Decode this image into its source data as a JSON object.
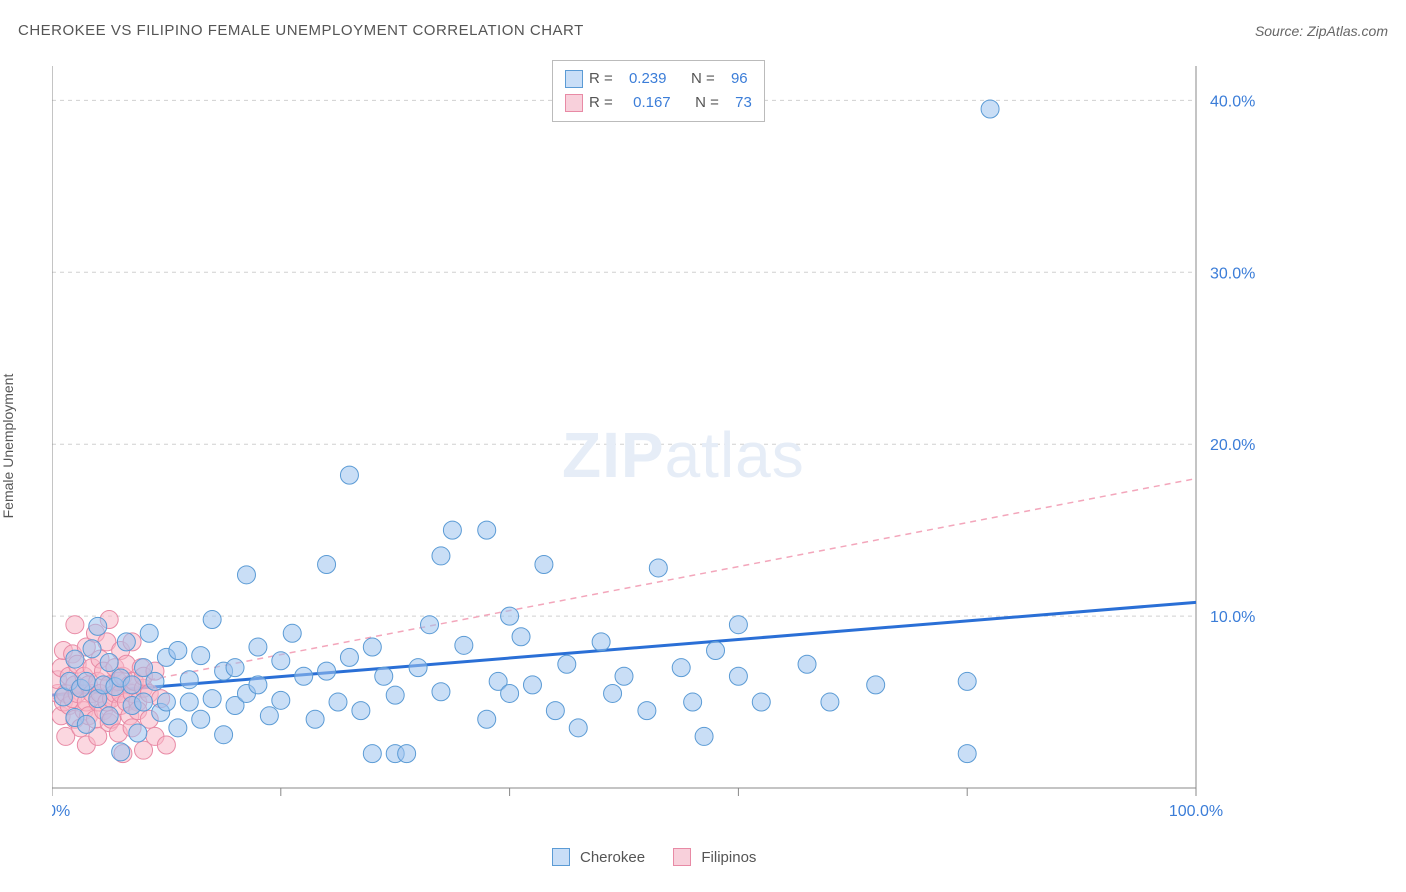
{
  "title": "CHEROKEE VS FILIPINO FEMALE UNEMPLOYMENT CORRELATION CHART",
  "source_prefix": "Source: ",
  "source_name": "ZipAtlas.com",
  "ylabel": "Female Unemployment",
  "watermark_bold": "ZIP",
  "watermark_rest": "atlas",
  "chart": {
    "type": "scatter",
    "xlim": [
      0,
      100
    ],
    "ylim": [
      0,
      42
    ],
    "x_ticks": [
      0,
      20,
      40,
      60,
      80,
      100
    ],
    "x_tick_labels_shown": {
      "0": "0.0%",
      "100": "100.0%"
    },
    "y_ticks": [
      10,
      20,
      30,
      40
    ],
    "y_tick_labels": [
      "10.0%",
      "20.0%",
      "30.0%",
      "40.0%"
    ],
    "background_color": "#ffffff",
    "grid_color": "#d0d0d0",
    "marker_radius": 9,
    "series": [
      {
        "key": "cherokee",
        "label": "Cherokee",
        "fill": "#9cc3ef",
        "stroke": "#5b9bd5",
        "trend_color": "#2a6fd6",
        "trend_dash": "none",
        "R": "0.239",
        "N": "96",
        "regression": {
          "x0": 0,
          "y0": 5.4,
          "x1": 100,
          "y1": 10.8
        },
        "points": [
          [
            1,
            5.3
          ],
          [
            1.5,
            6.2
          ],
          [
            2,
            4.1
          ],
          [
            2,
            7.5
          ],
          [
            2.5,
            5.8
          ],
          [
            3,
            6.2
          ],
          [
            3,
            3.7
          ],
          [
            3.5,
            8.1
          ],
          [
            4,
            5.2
          ],
          [
            4,
            9.4
          ],
          [
            4.5,
            6.0
          ],
          [
            5,
            4.2
          ],
          [
            5,
            7.3
          ],
          [
            5.5,
            5.9
          ],
          [
            6,
            2.1
          ],
          [
            6,
            6.4
          ],
          [
            6.5,
            8.5
          ],
          [
            7,
            4.8
          ],
          [
            7,
            6.0
          ],
          [
            7.5,
            3.2
          ],
          [
            8,
            7.0
          ],
          [
            8,
            5.0
          ],
          [
            8.5,
            9.0
          ],
          [
            9,
            6.2
          ],
          [
            9.5,
            4.4
          ],
          [
            10,
            7.6
          ],
          [
            10,
            5.0
          ],
          [
            11,
            8.0
          ],
          [
            11,
            3.5
          ],
          [
            12,
            6.3
          ],
          [
            12,
            5.0
          ],
          [
            13,
            7.7
          ],
          [
            13,
            4.0
          ],
          [
            14,
            9.8
          ],
          [
            14,
            5.2
          ],
          [
            15,
            6.8
          ],
          [
            15,
            3.1
          ],
          [
            16,
            7.0
          ],
          [
            16,
            4.8
          ],
          [
            17,
            12.4
          ],
          [
            17,
            5.5
          ],
          [
            18,
            8.2
          ],
          [
            18,
            6.0
          ],
          [
            19,
            4.2
          ],
          [
            20,
            7.4
          ],
          [
            20,
            5.1
          ],
          [
            21,
            9.0
          ],
          [
            22,
            6.5
          ],
          [
            23,
            4.0
          ],
          [
            24,
            13.0
          ],
          [
            24,
            6.8
          ],
          [
            25,
            5.0
          ],
          [
            26,
            7.6
          ],
          [
            26,
            18.2
          ],
          [
            27,
            4.5
          ],
          [
            28,
            8.2
          ],
          [
            28,
            2.0
          ],
          [
            29,
            6.5
          ],
          [
            30,
            2.0
          ],
          [
            30,
            5.4
          ],
          [
            31,
            2.0
          ],
          [
            32,
            7.0
          ],
          [
            33,
            9.5
          ],
          [
            34,
            13.5
          ],
          [
            34,
            5.6
          ],
          [
            35,
            15.0
          ],
          [
            36,
            8.3
          ],
          [
            38,
            4.0
          ],
          [
            38,
            15.0
          ],
          [
            39,
            6.2
          ],
          [
            40,
            10.0
          ],
          [
            40,
            5.5
          ],
          [
            41,
            8.8
          ],
          [
            42,
            6.0
          ],
          [
            43,
            13.0
          ],
          [
            44,
            4.5
          ],
          [
            45,
            7.2
          ],
          [
            46,
            3.5
          ],
          [
            48,
            8.5
          ],
          [
            49,
            5.5
          ],
          [
            50,
            6.5
          ],
          [
            52,
            4.5
          ],
          [
            53,
            12.8
          ],
          [
            55,
            7.0
          ],
          [
            56,
            5.0
          ],
          [
            57,
            3.0
          ],
          [
            58,
            8.0
          ],
          [
            60,
            6.5
          ],
          [
            60,
            9.5
          ],
          [
            62,
            5.0
          ],
          [
            66,
            7.2
          ],
          [
            68,
            5.0
          ],
          [
            72,
            6.0
          ],
          [
            80,
            2.0
          ],
          [
            80,
            6.2
          ],
          [
            82,
            39.5
          ]
        ]
      },
      {
        "key": "filipinos",
        "label": "Filipinos",
        "fill": "#f7b6c6",
        "stroke": "#e88aa5",
        "trend_color": "#f3a6bb",
        "trend_dash": "6 5",
        "R": "0.167",
        "N": "73",
        "regression": {
          "x0": 0,
          "y0": 5.2,
          "x1": 100,
          "y1": 18.0
        },
        "points": [
          [
            0.5,
            5.5
          ],
          [
            0.5,
            6.3
          ],
          [
            0.8,
            4.2
          ],
          [
            0.8,
            7.0
          ],
          [
            1.0,
            5.0
          ],
          [
            1.0,
            8.0
          ],
          [
            1.2,
            5.5
          ],
          [
            1.2,
            3.0
          ],
          [
            1.5,
            6.5
          ],
          [
            1.5,
            4.8
          ],
          [
            1.8,
            7.8
          ],
          [
            1.8,
            5.2
          ],
          [
            2.0,
            9.5
          ],
          [
            2.0,
            4.0
          ],
          [
            2.0,
            6.0
          ],
          [
            2.2,
            5.5
          ],
          [
            2.2,
            7.2
          ],
          [
            2.5,
            3.5
          ],
          [
            2.5,
            5.8
          ],
          [
            2.8,
            6.5
          ],
          [
            2.8,
            4.5
          ],
          [
            3.0,
            8.2
          ],
          [
            3.0,
            5.0
          ],
          [
            3.0,
            2.5
          ],
          [
            3.2,
            6.0
          ],
          [
            3.2,
            4.2
          ],
          [
            3.5,
            7.0
          ],
          [
            3.5,
            5.5
          ],
          [
            3.8,
            9.0
          ],
          [
            3.8,
            4.0
          ],
          [
            4.0,
            6.2
          ],
          [
            4.0,
            5.0
          ],
          [
            4.0,
            3.0
          ],
          [
            4.2,
            7.5
          ],
          [
            4.2,
            5.5
          ],
          [
            4.5,
            4.5
          ],
          [
            4.5,
            6.8
          ],
          [
            4.8,
            5.0
          ],
          [
            4.8,
            8.5
          ],
          [
            5.0,
            3.8
          ],
          [
            5.0,
            6.0
          ],
          [
            5.0,
            9.8
          ],
          [
            5.2,
            5.2
          ],
          [
            5.2,
            4.0
          ],
          [
            5.5,
            7.0
          ],
          [
            5.5,
            5.5
          ],
          [
            5.8,
            6.2
          ],
          [
            5.8,
            3.2
          ],
          [
            6.0,
            4.8
          ],
          [
            6.0,
            8.0
          ],
          [
            6.0,
            5.5
          ],
          [
            6.2,
            6.5
          ],
          [
            6.2,
            2.0
          ],
          [
            6.5,
            5.0
          ],
          [
            6.5,
            7.2
          ],
          [
            6.8,
            4.2
          ],
          [
            6.8,
            6.0
          ],
          [
            7.0,
            5.5
          ],
          [
            7.0,
            8.5
          ],
          [
            7.0,
            3.5
          ],
          [
            7.2,
            6.2
          ],
          [
            7.5,
            5.0
          ],
          [
            7.5,
            4.5
          ],
          [
            7.8,
            7.0
          ],
          [
            8.0,
            5.8
          ],
          [
            8.0,
            2.2
          ],
          [
            8.0,
            6.5
          ],
          [
            8.5,
            4.0
          ],
          [
            8.5,
            5.5
          ],
          [
            9.0,
            6.8
          ],
          [
            9.0,
            3.0
          ],
          [
            9.5,
            5.2
          ],
          [
            10.0,
            2.5
          ]
        ]
      }
    ]
  },
  "stats_legend": {
    "r_label": "R =",
    "n_label": "N ="
  },
  "bottom_legend": {
    "items": [
      "Cherokee",
      "Filipinos"
    ]
  }
}
